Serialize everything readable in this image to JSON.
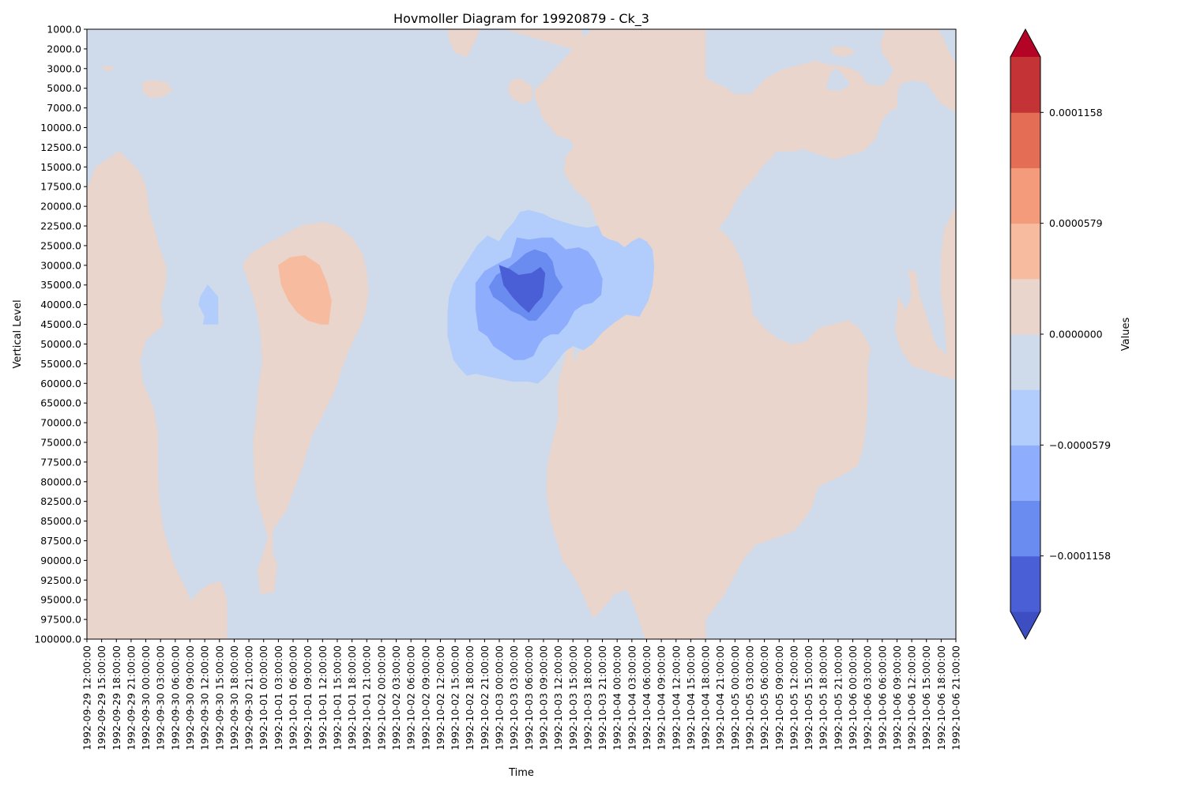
{
  "chart_data": {
    "type": "heatmap",
    "subtype": "filled-contour",
    "title": "Hovmoller Diagram for 19920879 - Ck_3",
    "xlabel": "Time",
    "ylabel": "Vertical Level",
    "colorbar_label": "Values",
    "colormap": "coolwarm",
    "colorbar_extend": "both",
    "colorbar_ticks": [
      "0.0001158",
      "0.0000579",
      "0.0000000",
      "−0.0000579",
      "−0.0001158"
    ],
    "colorbar_tick_values": [
      0.0001158,
      5.79e-05,
      0.0,
      -5.79e-05,
      -0.0001158
    ],
    "levels": [
      -0.0001448,
      -0.0001158,
      -8.69e-05,
      -5.79e-05,
      -2.9e-05,
      0.0,
      2.9e-05,
      5.79e-05,
      8.69e-05,
      0.0001158,
      0.0001448
    ],
    "level_colors": [
      "#4a5fd5",
      "#6a8bef",
      "#8eaefd",
      "#b2ccfb",
      "#cfdaea",
      "#ead5cc",
      "#f7bba0",
      "#f39b7b",
      "#e36d55",
      "#c43336"
    ],
    "extend_low_color": "#3c4ec2",
    "extend_high_color": "#b40426",
    "y_levels": [
      "1000.0",
      "2000.0",
      "3000.0",
      "5000.0",
      "7000.0",
      "10000.0",
      "12500.0",
      "15000.0",
      "17500.0",
      "20000.0",
      "22500.0",
      "25000.0",
      "30000.0",
      "35000.0",
      "40000.0",
      "45000.0",
      "50000.0",
      "55000.0",
      "60000.0",
      "65000.0",
      "70000.0",
      "75000.0",
      "77500.0",
      "80000.0",
      "82500.0",
      "85000.0",
      "87500.0",
      "90000.0",
      "92500.0",
      "95000.0",
      "97500.0",
      "100000.0"
    ],
    "x_times": [
      "1992-09-29 12:00:00",
      "1992-09-29 15:00:00",
      "1992-09-29 18:00:00",
      "1992-09-29 21:00:00",
      "1992-09-30 00:00:00",
      "1992-09-30 03:00:00",
      "1992-09-30 06:00:00",
      "1992-09-30 09:00:00",
      "1992-09-30 12:00:00",
      "1992-09-30 15:00:00",
      "1992-09-30 18:00:00",
      "1992-09-30 21:00:00",
      "1992-10-01 00:00:00",
      "1992-10-01 03:00:00",
      "1992-10-01 06:00:00",
      "1992-10-01 09:00:00",
      "1992-10-01 12:00:00",
      "1992-10-01 15:00:00",
      "1992-10-01 18:00:00",
      "1992-10-01 21:00:00",
      "1992-10-02 00:00:00",
      "1992-10-02 03:00:00",
      "1992-10-02 06:00:00",
      "1992-10-02 09:00:00",
      "1992-10-02 12:00:00",
      "1992-10-02 15:00:00",
      "1992-10-02 18:00:00",
      "1992-10-02 21:00:00",
      "1992-10-03 00:00:00",
      "1992-10-03 03:00:00",
      "1992-10-03 06:00:00",
      "1992-10-03 09:00:00",
      "1992-10-03 12:00:00",
      "1992-10-03 15:00:00",
      "1992-10-03 18:00:00",
      "1992-10-03 21:00:00",
      "1992-10-04 00:00:00",
      "1992-10-04 03:00:00",
      "1992-10-04 06:00:00",
      "1992-10-04 09:00:00",
      "1992-10-04 12:00:00",
      "1992-10-04 15:00:00",
      "1992-10-04 18:00:00",
      "1992-10-04 21:00:00",
      "1992-10-05 00:00:00",
      "1992-10-05 03:00:00",
      "1992-10-05 06:00:00",
      "1992-10-05 09:00:00",
      "1992-10-05 12:00:00",
      "1992-10-05 15:00:00",
      "1992-10-05 18:00:00",
      "1992-10-05 21:00:00",
      "1992-10-06 00:00:00",
      "1992-10-06 03:00:00",
      "1992-10-06 06:00:00",
      "1992-10-06 09:00:00",
      "1992-10-06 12:00:00",
      "1992-10-06 15:00:00",
      "1992-10-06 18:00:00",
      "1992-10-06 21:00:00"
    ],
    "grid": false,
    "legend": "colorbar-right"
  }
}
